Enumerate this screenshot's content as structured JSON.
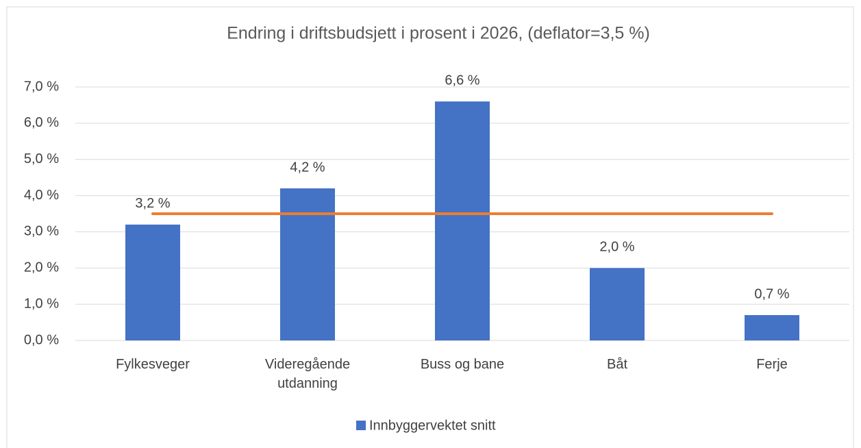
{
  "chart_data": {
    "type": "bar",
    "title": "Endring i driftsbudsjett i prosent i 2026, (deflator=3,5 %)",
    "categories": [
      "Fylkesveger",
      "Videregående utdanning",
      "Buss og bane",
      "Båt",
      "Ferje"
    ],
    "series": [
      {
        "name": "Innbyggervektet snitt",
        "color": "#4472c4",
        "values": [
          3.2,
          4.2,
          6.6,
          2.0,
          0.7
        ],
        "value_labels": [
          "3,2 %",
          "4,2 %",
          "6,6 %",
          "2,0 %",
          "0,7 %"
        ]
      }
    ],
    "reference_line": {
      "value": 3.5,
      "color": "#ed7d31"
    },
    "ylim": [
      0,
      7
    ],
    "yticks": [
      {
        "value": 0,
        "label": "0,0 %"
      },
      {
        "value": 1,
        "label": "1,0 %"
      },
      {
        "value": 2,
        "label": "2,0 %"
      },
      {
        "value": 3,
        "label": "3,0 %"
      },
      {
        "value": 4,
        "label": "4,0 %"
      },
      {
        "value": 5,
        "label": "5,0 %"
      },
      {
        "value": 6,
        "label": "6,0 %"
      },
      {
        "value": 7,
        "label": "7,0 %"
      }
    ],
    "grid": true,
    "legend": "bottom"
  }
}
